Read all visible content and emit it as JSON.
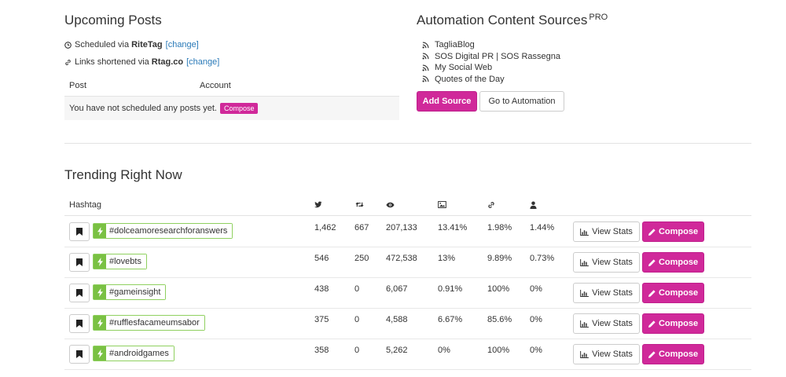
{
  "upcoming": {
    "title": "Upcoming Posts",
    "scheduled_prefix": "Scheduled via",
    "scheduled_brand": "RiteTag",
    "change_label": "[change]",
    "links_prefix": "Links shortened via",
    "links_brand": "Rtag.co",
    "col_post": "Post",
    "col_account": "Account",
    "empty_text": "You have not scheduled any posts yet.",
    "compose_label": "Compose"
  },
  "automation": {
    "title": "Automation Content Sources",
    "pro_badge": "PRO",
    "sources": [
      "TagliaBlog",
      "SOS Digital PR | SOS Rassegna",
      "My Social Web",
      "Quotes of the Day"
    ],
    "add_source_label": "Add Source",
    "go_to_label": "Go to Automation"
  },
  "trending": {
    "title": "Trending Right Now",
    "col_hashtag": "Hashtag",
    "view_stats_label": "View Stats",
    "compose_label": "Compose",
    "rows": [
      {
        "hashtag": "#dolceamoresearchforanswers",
        "tweets": "1,462",
        "retweets": "667",
        "views": "207,133",
        "images": "13.41%",
        "links": "1.98%",
        "mentions": "1.44%"
      },
      {
        "hashtag": "#lovebts",
        "tweets": "546",
        "retweets": "250",
        "views": "472,538",
        "images": "13%",
        "links": "9.89%",
        "mentions": "0.73%"
      },
      {
        "hashtag": "#gameinsight",
        "tweets": "438",
        "retweets": "0",
        "views": "6,067",
        "images": "0.91%",
        "links": "100%",
        "mentions": "0%"
      },
      {
        "hashtag": "#rufflesfacameumsabor",
        "tweets": "375",
        "retweets": "0",
        "views": "4,588",
        "images": "6.67%",
        "links": "85.6%",
        "mentions": "0%"
      },
      {
        "hashtag": "#androidgames",
        "tweets": "358",
        "retweets": "0",
        "views": "5,262",
        "images": "0%",
        "links": "100%",
        "mentions": "0%"
      }
    ]
  },
  "colors": {
    "accent": "#d0299a",
    "link": "#2a7ab8",
    "trend_green": "#7ac143"
  }
}
